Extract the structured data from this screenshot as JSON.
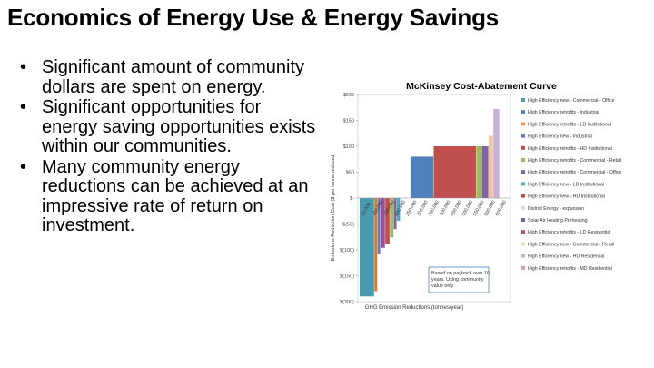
{
  "slide": {
    "title": "Economics of Energy Use & Energy Savings",
    "bullets": [
      "Significant amount of community dollars are spent on energy.",
      "Significant opportunities for energy saving opportunities exists within our communities.",
      "Many community energy reductions can be achieved at an impressive rate of return on investment."
    ],
    "bullet_glyph": "•"
  },
  "chart_data": {
    "type": "bar",
    "title": "McKinsey Cost-Abatement Curve",
    "xlabel": "GHG Emission Reductions (tonnes/year)",
    "ylabel": "Emissions Reduction Cost ($ per tonne reduced)",
    "y_ticks": [
      "$200",
      "$150",
      "$100",
      "$50",
      "$-",
      "$(50)",
      "$(100)",
      "$(150)",
      "$(200)"
    ],
    "ylim": [
      -200,
      200
    ],
    "x_ticks": [
      "50,000",
      "100,000",
      "150,000",
      "200,000",
      "250,000",
      "300,000",
      "350,000",
      "400,000",
      "450,000",
      "500,000",
      "550,000",
      "600,000",
      "650,000"
    ],
    "note": "Based on payback over 10 years. Using community value only",
    "legend_position": "right",
    "series": [
      {
        "name": "High Efficiency new - Commercial - Office",
        "color": "#4a9bb0",
        "width": 38000,
        "value": -190
      },
      {
        "name": "High Efficiency retrofits - Industrial",
        "color": "#e07a20",
        "width": 8000,
        "value": -180
      },
      {
        "name": "High Efficiency retrofits - LD Institutional",
        "color": "#5b7fc0",
        "width": 8000,
        "value": -108
      },
      {
        "name": "High Efficiency new - Industrial",
        "color": "#9b4f96",
        "width": 12000,
        "value": -96
      },
      {
        "name": "High Efficiency retrofits - HD Institutional",
        "color": "#c0504d",
        "width": 12000,
        "value": -88
      },
      {
        "name": "High Efficiency retrofits - Commercial - Retail",
        "color": "#9bbb59",
        "width": 10000,
        "value": -76
      },
      {
        "name": "High Efficiency retrofits - Commercial - Office",
        "color": "#8064a2",
        "width": 8000,
        "value": -60
      },
      {
        "name": "High Efficiency new - LD Institutional",
        "color": "#4bacc6",
        "width": 9000,
        "value": -44
      },
      {
        "name": "High Efficiency retrofits - LD Institutional",
        "color": "#f79646",
        "width": 14000,
        "value": 0
      },
      {
        "name": "District Energy - expansion",
        "color": "#c5c1e0",
        "width": 12000,
        "value": 0
      },
      {
        "name": "High Efficiency new - HD Institutional",
        "color": "#4f81bd",
        "width": 60000,
        "value": 80
      },
      {
        "name": "High Efficiency retrofits - LD Residential",
        "color": "#c0504d",
        "width": 110000,
        "value": 100
      },
      {
        "name": "High Efficiency new - Commercial - Retail",
        "color": "#9bbb59",
        "width": 14000,
        "value": 100
      },
      {
        "name": "Solar Air Heating Preheating",
        "color": "#8064a2",
        "width": 18000,
        "value": 100
      },
      {
        "name": "High Efficiency retrofits - MD Residential",
        "color": "#f2c4a0",
        "width": 12000,
        "value": 120
      },
      {
        "name": "High Efficiency new - HD Residential",
        "color": "#c8b0d8",
        "width": 16000,
        "value": 172
      }
    ],
    "legend": [
      {
        "name": "High Efficiency new - Commercial - Office",
        "color": "#4a9bb0"
      },
      {
        "name": "High Efficiency retrofits - Industrial",
        "color": "#4f81bd"
      },
      {
        "name": "High Efficiency retrofits - LD Institutional",
        "color": "#f79646"
      },
      {
        "name": "High Efficiency new - Industrial",
        "color": "#5b7fc0"
      },
      {
        "name": "High Efficiency retrofits - HD Institutional",
        "color": "#c0504d"
      },
      {
        "name": "High Efficiency retrofits - Commercial - Retail",
        "color": "#9bbb59"
      },
      {
        "name": "High Efficiency retrofits - Commercial - Office",
        "color": "#8064a2"
      },
      {
        "name": "High Efficiency new - LD Institutional",
        "color": "#4bacc6"
      },
      {
        "name": "High Efficiency new - HD Institutional",
        "color": "#c0504d"
      },
      {
        "name": "District Energy - expansion",
        "color": "#d9d9e8"
      },
      {
        "name": "Solar Air Heating Preheating",
        "color": "#8064a2"
      },
      {
        "name": "High Efficiency retrofits - LD Residential",
        "color": "#c0504d"
      },
      {
        "name": "High Efficiency new - Commercial - Retail",
        "color": "#f2dcc0"
      },
      {
        "name": "High Efficiency new - HD Residential",
        "color": "#c8b0d8"
      },
      {
        "name": "High Efficiency retrofits - MD Residential",
        "color": "#dca0a0"
      }
    ]
  }
}
